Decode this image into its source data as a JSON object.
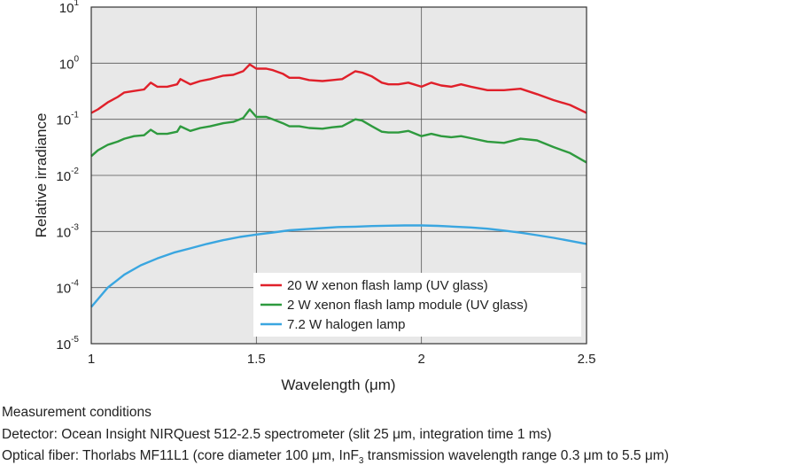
{
  "chart_data": {
    "type": "line",
    "xlabel": "Wavelength (μm)",
    "ylabel": "Relative irradiance",
    "xlim": [
      1,
      2.5
    ],
    "ylim": [
      1e-05,
      10
    ],
    "y_scale": "log",
    "grid": true,
    "legend_position": "bottom-right",
    "x_ticks": [
      "1",
      "1.5",
      "2",
      "2.5"
    ],
    "y_ticks": [
      {
        "base": "10",
        "exp": "1",
        "value": 10
      },
      {
        "base": "10",
        "exp": "0",
        "value": 1
      },
      {
        "base": "10",
        "exp": "-1",
        "value": 0.1
      },
      {
        "base": "10",
        "exp": "-2",
        "value": 0.01
      },
      {
        "base": "10",
        "exp": "-3",
        "value": 0.001
      },
      {
        "base": "10",
        "exp": "-4",
        "value": 0.0001
      },
      {
        "base": "10",
        "exp": "-5",
        "value": 1e-05
      }
    ],
    "series": [
      {
        "name": "20 W xenon flash lamp (UV glass)",
        "color": "#e0202a",
        "x": [
          1.0,
          1.02,
          1.05,
          1.08,
          1.1,
          1.13,
          1.16,
          1.18,
          1.2,
          1.23,
          1.26,
          1.27,
          1.3,
          1.33,
          1.36,
          1.4,
          1.43,
          1.46,
          1.48,
          1.5,
          1.53,
          1.55,
          1.58,
          1.6,
          1.63,
          1.66,
          1.7,
          1.73,
          1.76,
          1.8,
          1.82,
          1.85,
          1.88,
          1.9,
          1.93,
          1.96,
          2.0,
          2.03,
          2.06,
          2.09,
          2.12,
          2.15,
          2.2,
          2.25,
          2.3,
          2.35,
          2.4,
          2.45,
          2.5
        ],
        "y": [
          0.13,
          0.15,
          0.2,
          0.25,
          0.3,
          0.32,
          0.34,
          0.45,
          0.38,
          0.38,
          0.42,
          0.52,
          0.42,
          0.48,
          0.52,
          0.6,
          0.62,
          0.72,
          0.95,
          0.8,
          0.8,
          0.75,
          0.65,
          0.55,
          0.55,
          0.5,
          0.48,
          0.5,
          0.52,
          0.72,
          0.68,
          0.58,
          0.45,
          0.42,
          0.42,
          0.45,
          0.38,
          0.45,
          0.4,
          0.38,
          0.42,
          0.38,
          0.33,
          0.33,
          0.35,
          0.28,
          0.22,
          0.18,
          0.13
        ]
      },
      {
        "name": "2 W xenon flash lamp module (UV glass)",
        "color": "#2e9a3e",
        "x": [
          1.0,
          1.02,
          1.05,
          1.08,
          1.1,
          1.13,
          1.16,
          1.18,
          1.2,
          1.23,
          1.26,
          1.27,
          1.3,
          1.33,
          1.36,
          1.4,
          1.43,
          1.46,
          1.48,
          1.5,
          1.53,
          1.55,
          1.58,
          1.6,
          1.63,
          1.66,
          1.7,
          1.73,
          1.76,
          1.8,
          1.82,
          1.85,
          1.88,
          1.9,
          1.93,
          1.96,
          2.0,
          2.03,
          2.06,
          2.09,
          2.12,
          2.15,
          2.2,
          2.25,
          2.3,
          2.35,
          2.4,
          2.45,
          2.5
        ],
        "y": [
          0.022,
          0.028,
          0.035,
          0.04,
          0.045,
          0.05,
          0.052,
          0.065,
          0.055,
          0.055,
          0.06,
          0.075,
          0.062,
          0.07,
          0.075,
          0.085,
          0.09,
          0.105,
          0.15,
          0.11,
          0.11,
          0.1,
          0.085,
          0.075,
          0.075,
          0.07,
          0.068,
          0.072,
          0.075,
          0.1,
          0.095,
          0.075,
          0.06,
          0.058,
          0.058,
          0.062,
          0.05,
          0.055,
          0.05,
          0.048,
          0.05,
          0.046,
          0.04,
          0.038,
          0.045,
          0.042,
          0.032,
          0.025,
          0.017
        ]
      },
      {
        "name": "7.2 W halogen lamp",
        "color": "#3aa6e0",
        "x": [
          1.0,
          1.05,
          1.1,
          1.15,
          1.2,
          1.25,
          1.3,
          1.35,
          1.4,
          1.45,
          1.5,
          1.55,
          1.6,
          1.65,
          1.7,
          1.75,
          1.8,
          1.85,
          1.9,
          1.95,
          2.0,
          2.05,
          2.1,
          2.15,
          2.2,
          2.25,
          2.3,
          2.35,
          2.4,
          2.45,
          2.5
        ],
        "y": [
          4.5e-05,
          0.0001,
          0.00017,
          0.00025,
          0.00033,
          0.00042,
          0.0005,
          0.0006,
          0.0007,
          0.0008,
          0.00088,
          0.00096,
          0.00105,
          0.0011,
          0.00115,
          0.0012,
          0.00122,
          0.00125,
          0.00127,
          0.00128,
          0.00128,
          0.00126,
          0.00122,
          0.00118,
          0.00112,
          0.00104,
          0.00095,
          0.00086,
          0.00077,
          0.00068,
          0.0006
        ]
      }
    ]
  },
  "notes": {
    "heading": "Measurement conditions",
    "detector": "Detector: Ocean Insight NIRQuest 512-2.5 spectrometer (slit 25 μm, integration time 1 ms)",
    "fiber": {
      "pre": "Optical fiber: Thorlabs MF11L1 (core diameter 100 μm, InF",
      "sub": "3",
      "post": " transmission wavelength range 0.3 μm to 5.5 μm)"
    }
  }
}
